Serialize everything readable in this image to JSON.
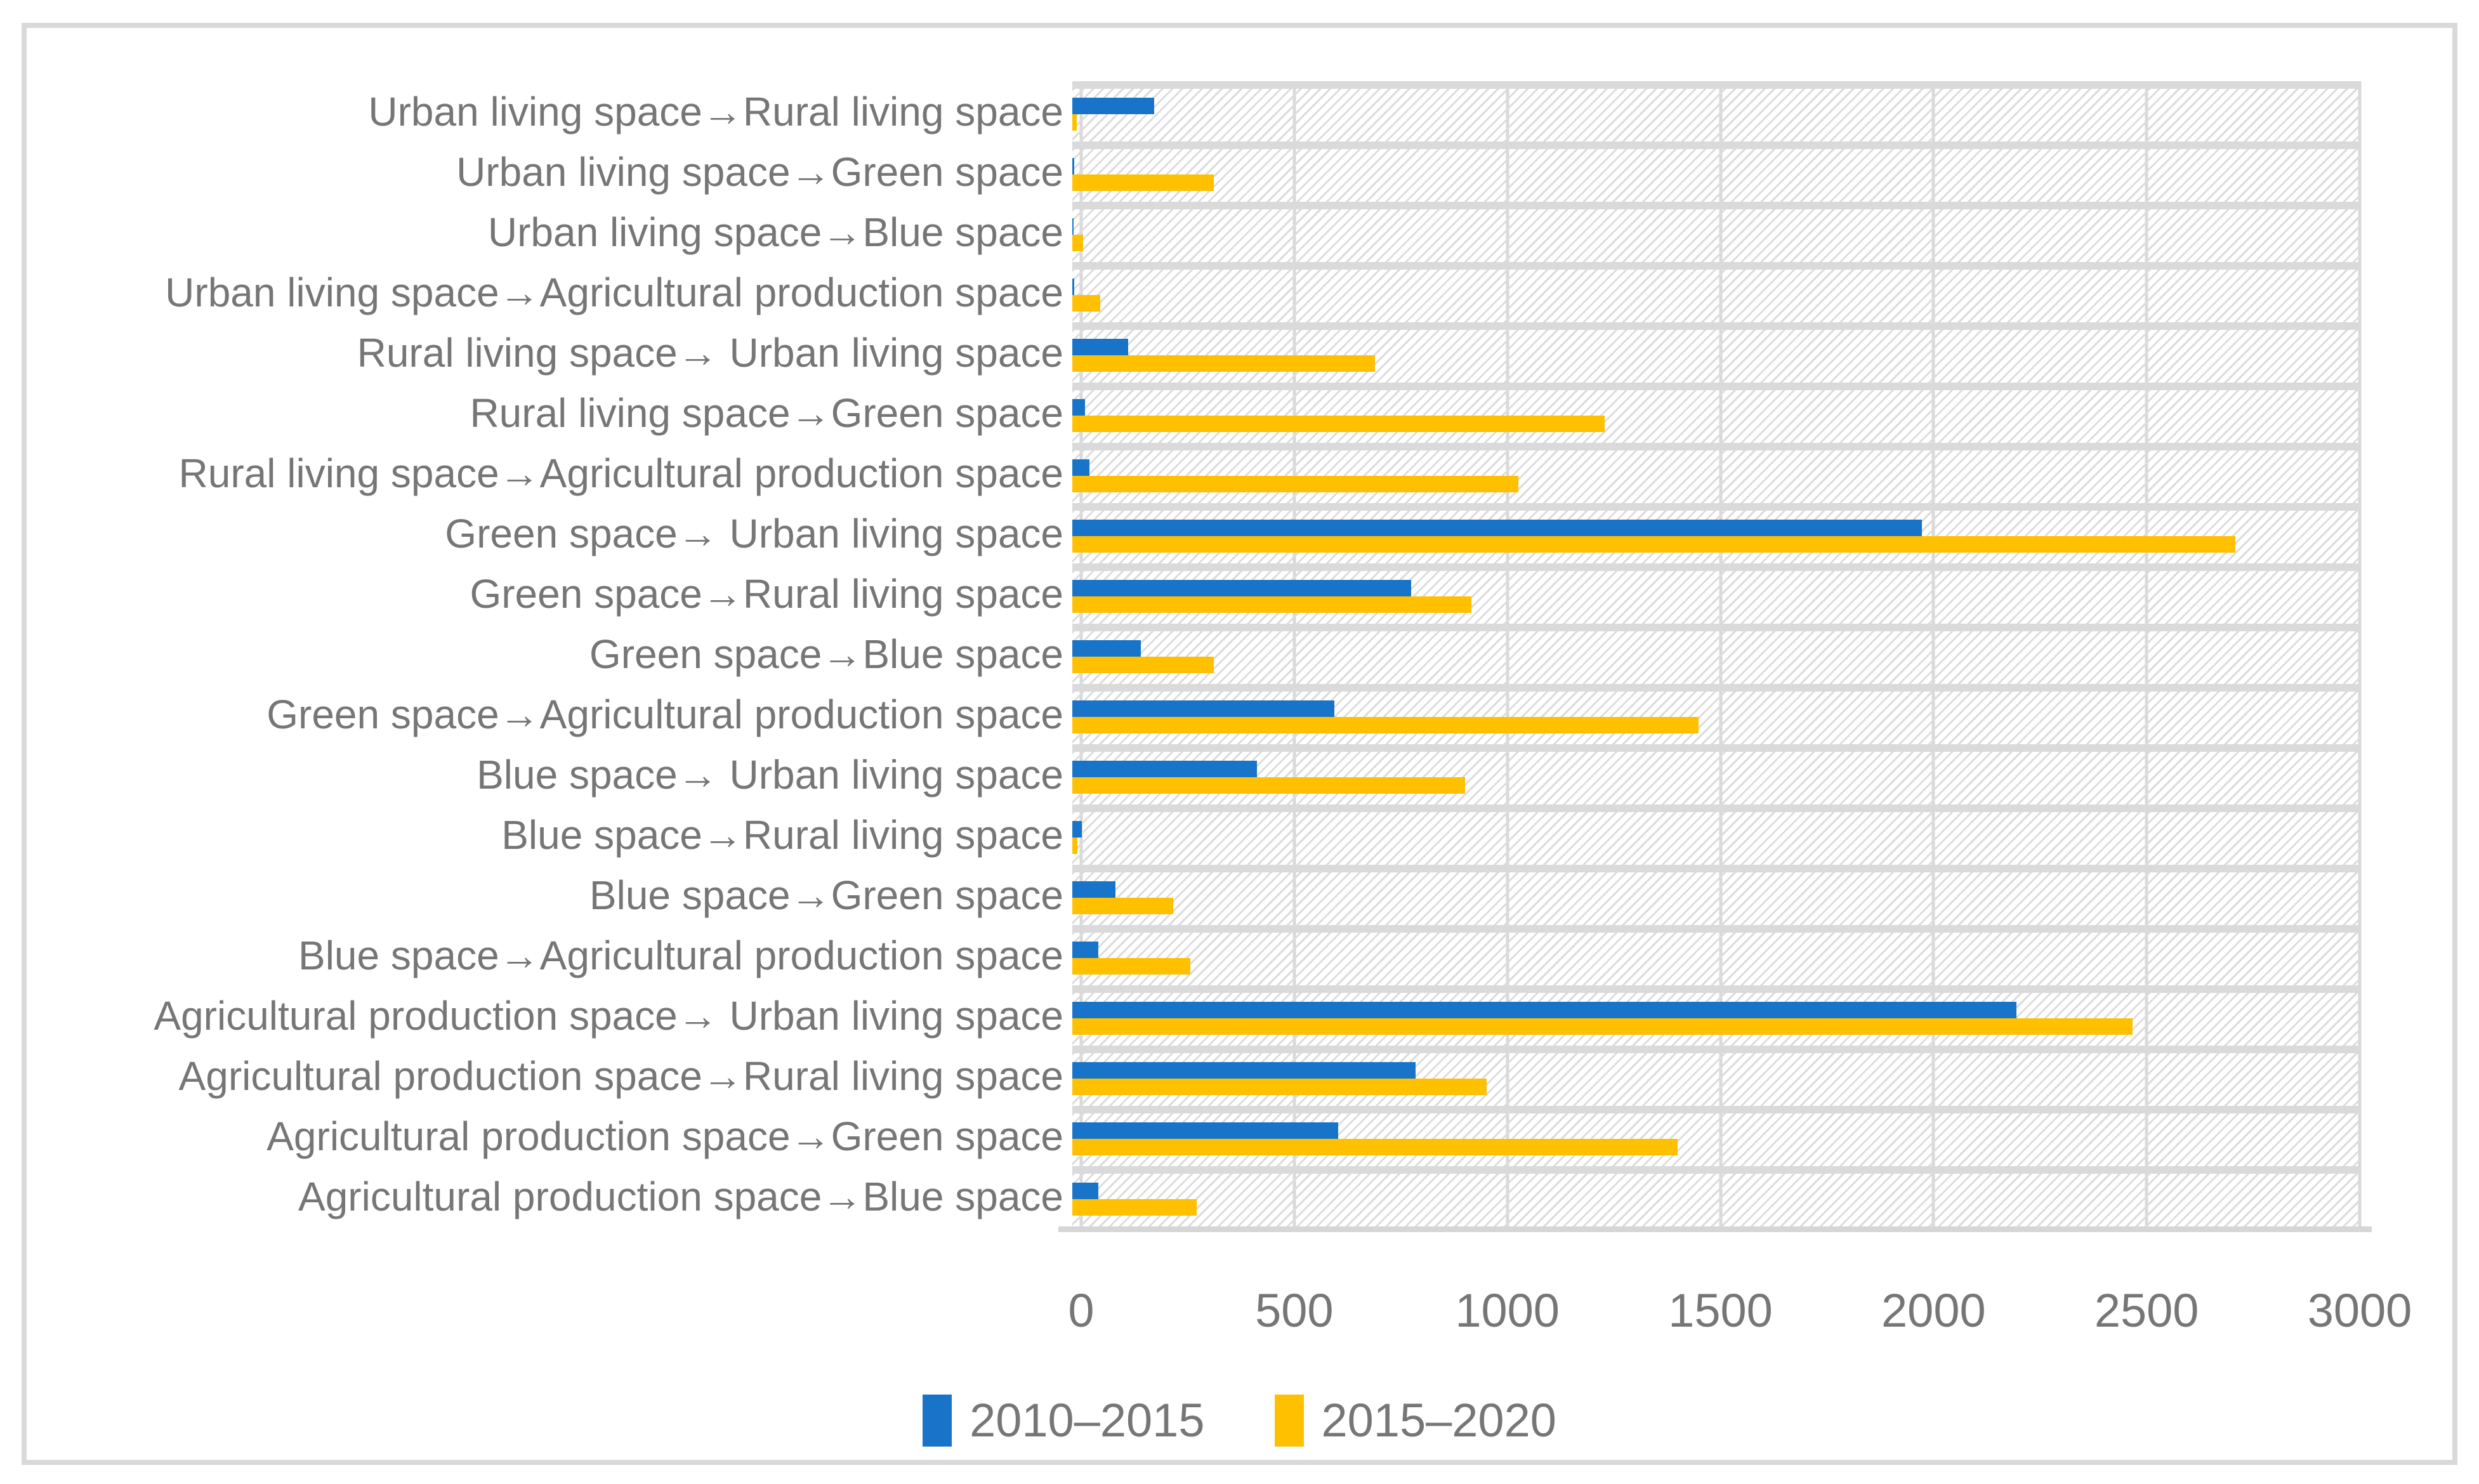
{
  "colors": {
    "series_blue": "#1874C8",
    "series_yellow": "#FFC000",
    "gridline": "#d9d9d9",
    "row_separator": "#dadada",
    "hatch": "#dcdcdc",
    "axis_line": "#d6d6d6",
    "frame_border": "#d9d9d9",
    "text": "#767676"
  },
  "chart_data": {
    "type": "bar",
    "orientation": "horizontal",
    "title": "",
    "xlabel": "",
    "ylabel": "",
    "xlim": [
      0,
      3000
    ],
    "x_ticks": [
      0,
      500,
      1000,
      1500,
      2000,
      2500,
      3000
    ],
    "grid": true,
    "legend_position": "bottom",
    "plot_background": "diagonal-hatch",
    "categories": [
      "Urban living space→Rural living space",
      "Urban living space→Green space",
      "Urban living space→Blue space",
      "Urban living space→Agricultural production space",
      "Rural living space→ Urban living space",
      "Rural living space→Green space",
      "Rural living space→Agricultural production space",
      "Green space→ Urban living space",
      "Green space→Rural living space",
      "Green space→Blue space",
      "Green space→Agricultural production space",
      "Blue space→ Urban living space",
      "Blue space→Rural living space",
      "Blue space→Green space",
      "Blue space→Agricultural production space",
      "Agricultural production space→ Urban living space",
      "Agricultural production space→Rural living space",
      "Agricultural production space→Green space",
      "Agricultural production space→Blue space"
    ],
    "series": [
      {
        "name": "2010–2015",
        "color": "#1874C8",
        "values": [
          190,
          5,
          3,
          5,
          130,
          30,
          40,
          1980,
          790,
          160,
          610,
          430,
          22,
          100,
          60,
          2200,
          800,
          620,
          60
        ]
      },
      {
        "name": "2015–2020",
        "color": "#FFC000",
        "values": [
          10,
          330,
          25,
          65,
          705,
          1240,
          1040,
          2710,
          930,
          330,
          1460,
          915,
          12,
          235,
          275,
          2470,
          965,
          1410,
          290
        ]
      }
    ]
  },
  "legend": {
    "item1_label": "2010–2015",
    "item2_label": "2015–2020"
  }
}
